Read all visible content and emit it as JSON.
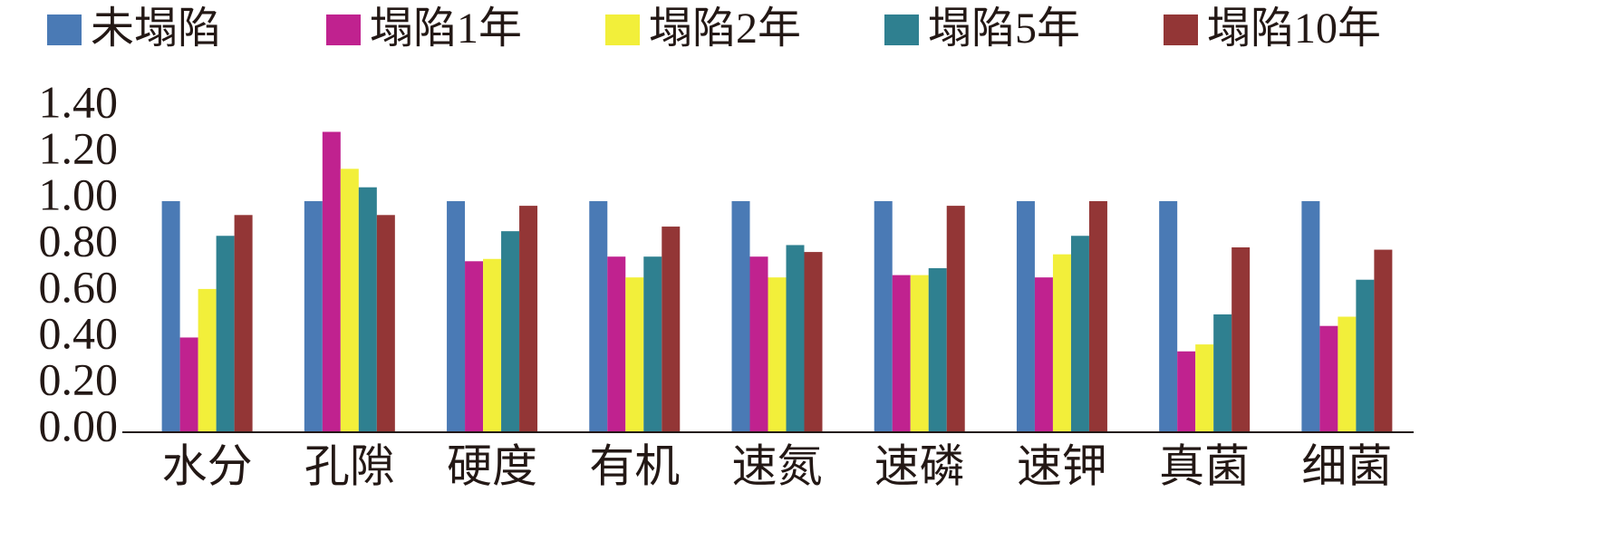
{
  "chart_data": {
    "type": "bar",
    "categories": [
      "水分",
      "孔隙",
      "硬度",
      "有机",
      "速氮",
      "速磷",
      "速钾",
      "真菌",
      "细菌"
    ],
    "series": [
      {
        "name": "未塌陷",
        "color": "#4a7ab5",
        "values": [
          1.0,
          1.0,
          1.0,
          1.0,
          1.0,
          1.0,
          1.0,
          1.0,
          1.0
        ]
      },
      {
        "name": "塌陷1年",
        "color": "#c0228f",
        "values": [
          0.41,
          1.3,
          0.74,
          0.76,
          0.76,
          0.68,
          0.67,
          0.35,
          0.46
        ]
      },
      {
        "name": "塌陷2年",
        "color": "#f2ef3a",
        "values": [
          0.62,
          1.14,
          0.75,
          0.67,
          0.67,
          0.68,
          0.77,
          0.38,
          0.5
        ]
      },
      {
        "name": "塌陷5年",
        "color": "#2f8090",
        "values": [
          0.85,
          1.06,
          0.87,
          0.76,
          0.81,
          0.71,
          0.85,
          0.51,
          0.66
        ]
      },
      {
        "name": "塌陷10年",
        "color": "#933636",
        "values": [
          0.94,
          0.94,
          0.98,
          0.89,
          0.78,
          0.98,
          1.0,
          0.8,
          0.79
        ]
      }
    ],
    "ylim": [
      0,
      1.4
    ],
    "yticks": [
      {
        "value": 0,
        "label": "0.00"
      },
      {
        "value": 0.2,
        "label": "0.20"
      },
      {
        "value": 0.4,
        "label": "0.40"
      },
      {
        "value": 0.6,
        "label": "0.60"
      },
      {
        "value": 0.8,
        "label": "0.80"
      },
      {
        "value": 1,
        "label": "1.00"
      },
      {
        "value": 1.2,
        "label": "1.20"
      },
      {
        "value": 1.4,
        "label": "1.40"
      }
    ],
    "grid": false,
    "legend": "top"
  }
}
